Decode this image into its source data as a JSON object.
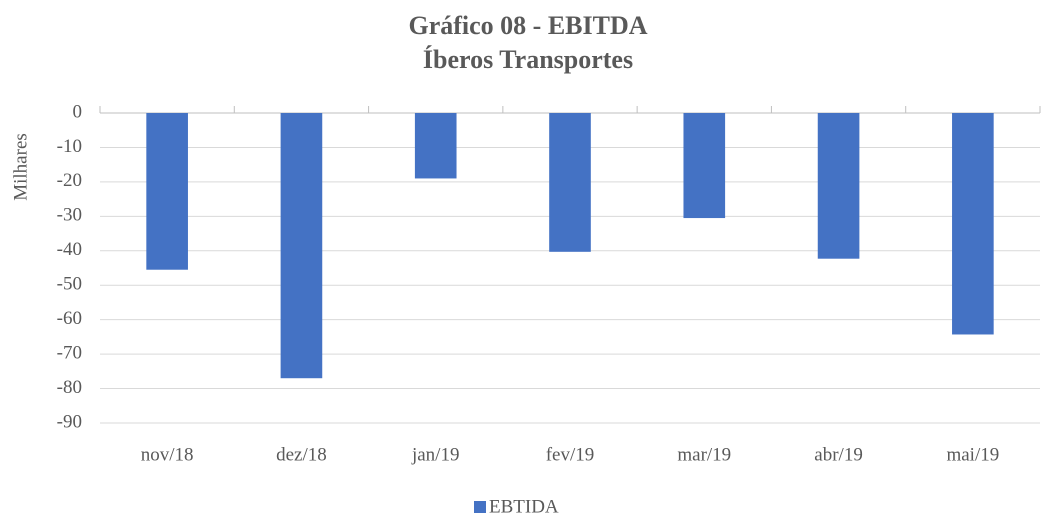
{
  "chart_data": {
    "type": "bar",
    "title": "Gráfico 08 - EBITDA",
    "subtitle": "Íberos Transportes",
    "y_label": "Milhares",
    "categories": [
      "nov/18",
      "dez/18",
      "jan/19",
      "fev/19",
      "mar/19",
      "abr/19",
      "mai/19"
    ],
    "series": [
      {
        "name": "EBTIDA",
        "color": "#4472c4",
        "values": [
          -45.5,
          -77,
          -19,
          -40.3,
          -30.5,
          -42.3,
          -64.3
        ]
      }
    ],
    "ylim": [
      -90,
      0
    ],
    "yticks": [
      0,
      -10,
      -20,
      -30,
      -40,
      -50,
      -60,
      -70,
      -80,
      -90
    ],
    "grid": true,
    "legend": "bottom"
  }
}
